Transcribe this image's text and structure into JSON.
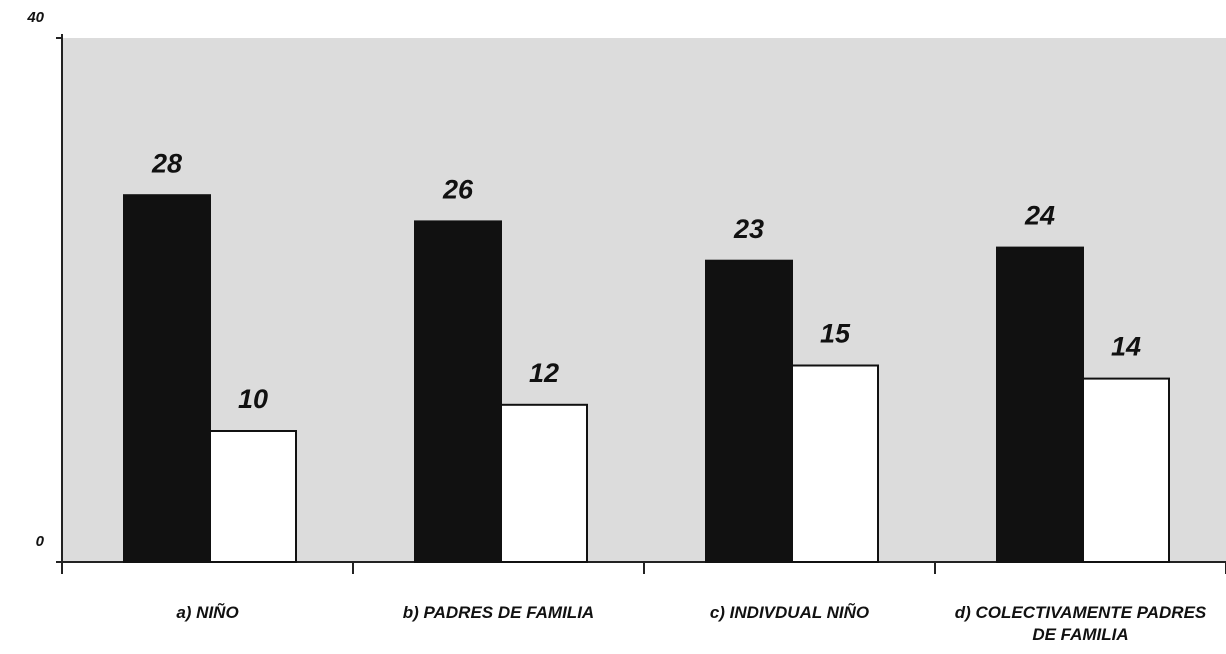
{
  "chart_data": {
    "type": "bar",
    "categories": [
      "a) NIÑO",
      "b) PADRES DE FAMILIA",
      "c) INDIVDUAL NIÑO",
      "d) COLECTIVAMENTE PADRES DE FAMILIA"
    ],
    "series": [
      {
        "color": "#111111",
        "values": [
          28,
          26,
          23,
          24
        ]
      },
      {
        "color": "#ffffff",
        "values": [
          10,
          12,
          15,
          14
        ]
      }
    ],
    "ylim": [
      0,
      40
    ],
    "yticks": [
      0,
      40
    ],
    "grid": false
  }
}
